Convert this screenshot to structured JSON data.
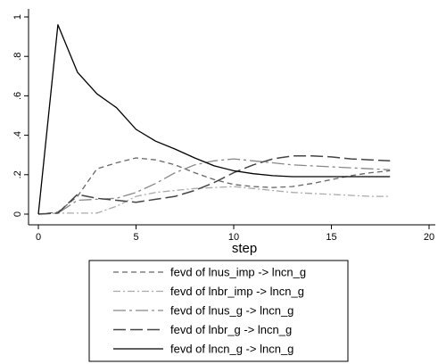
{
  "chart_data": {
    "type": "line",
    "title": "",
    "xlabel": "step",
    "ylabel": "",
    "xlim": [
      0,
      20
    ],
    "ylim": [
      0,
      1
    ],
    "xticks": [
      "0",
      "5",
      "10",
      "15",
      "20"
    ],
    "yticks": [
      "0",
      ".2",
      ".4",
      ".6",
      ".8",
      "1"
    ],
    "grid": false,
    "legend_position": "bottom",
    "x": [
      0,
      1,
      2,
      3,
      4,
      5,
      6,
      7,
      8,
      9,
      10,
      11,
      12,
      13,
      14,
      15,
      16,
      17,
      18
    ],
    "series": [
      {
        "name": "fevd of lnus_imp -> lncn_g",
        "color": "#666666",
        "dash": "short-dash",
        "values": [
          0,
          0.01,
          0.09,
          0.23,
          0.26,
          0.285,
          0.275,
          0.25,
          0.21,
          0.175,
          0.15,
          0.14,
          0.135,
          0.14,
          0.155,
          0.175,
          0.195,
          0.21,
          0.22
        ]
      },
      {
        "name": "fevd of lnbr_imp -> lncn_g",
        "color": "#aaaaaa",
        "dash": "dash-dot",
        "values": [
          0,
          0.005,
          0.005,
          0.005,
          0.04,
          0.09,
          0.11,
          0.12,
          0.13,
          0.135,
          0.14,
          0.13,
          0.12,
          0.11,
          0.105,
          0.1,
          0.095,
          0.09,
          0.09
        ]
      },
      {
        "name": "fevd of lnus_g -> lncn_g",
        "color": "#888888",
        "dash": "long-dash-dot",
        "values": [
          0,
          0.005,
          0.07,
          0.075,
          0.08,
          0.11,
          0.155,
          0.21,
          0.25,
          0.27,
          0.28,
          0.27,
          0.26,
          0.25,
          0.245,
          0.24,
          0.235,
          0.23,
          0.225
        ]
      },
      {
        "name": "fevd of lnbr_g -> lncn_g",
        "color": "#444444",
        "dash": "long-dash",
        "values": [
          0,
          0.005,
          0.1,
          0.08,
          0.07,
          0.06,
          0.075,
          0.09,
          0.12,
          0.16,
          0.21,
          0.25,
          0.28,
          0.295,
          0.295,
          0.29,
          0.28,
          0.275,
          0.27
        ]
      },
      {
        "name": "fevd of lncn_g -> lncn_g",
        "color": "#000000",
        "dash": "solid",
        "values": [
          0,
          0.96,
          0.72,
          0.61,
          0.54,
          0.43,
          0.37,
          0.33,
          0.285,
          0.245,
          0.22,
          0.205,
          0.195,
          0.19,
          0.19,
          0.19,
          0.19,
          0.19,
          0.19
        ]
      }
    ]
  }
}
